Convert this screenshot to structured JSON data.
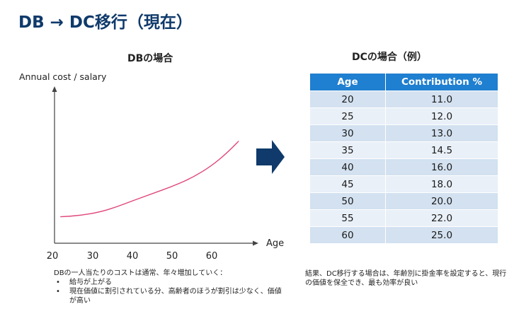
{
  "title": "DB → DC移行（現在）",
  "db": {
    "subtitle": "DBの場合",
    "chart_data": {
      "type": "line",
      "xlabel": "Age",
      "ylabel": "Annual cost / salary",
      "x_ticks": [
        "20",
        "30",
        "40",
        "50",
        "60"
      ],
      "xlim": [
        20,
        70
      ],
      "ylim": [
        0,
        100
      ],
      "series": [
        {
          "x": [
            22,
            27,
            32,
            36,
            40,
            45,
            50,
            55,
            60,
            64,
            67
          ],
          "y": [
            22,
            23,
            26,
            30,
            35,
            41,
            47,
            54,
            64,
            75,
            85
          ],
          "color": "#e0457b"
        }
      ]
    },
    "notes": {
      "lead": "DBの一人当たりのコストは通常、年々増加していく：",
      "bullets": [
        "給与が上がる",
        "現在価値に割引されている分、高齢者のほうが割引は少なく、価値が高い"
      ]
    }
  },
  "dc": {
    "subtitle": "DCの場合（例）",
    "headers": [
      "Age",
      "Contribution %"
    ],
    "rows": [
      [
        "20",
        "11.0"
      ],
      [
        "25",
        "12.0"
      ],
      [
        "30",
        "13.0"
      ],
      [
        "35",
        "14.5"
      ],
      [
        "40",
        "16.0"
      ],
      [
        "45",
        "18.0"
      ],
      [
        "50",
        "20.0"
      ],
      [
        "55",
        "22.0"
      ],
      [
        "60",
        "25.0"
      ]
    ],
    "note": "結果、DC移行する場合は、年齢別に掛金率を設定すると、現行の価値を保全でき、最も効率が良い"
  },
  "colors": {
    "title": "#0f3a6b",
    "arrow": "#0f3a6b",
    "table_header": "#1f7fd0",
    "row_odd": "#d3e1f0",
    "row_even": "#e9f0f8",
    "line": "#e0457b"
  }
}
